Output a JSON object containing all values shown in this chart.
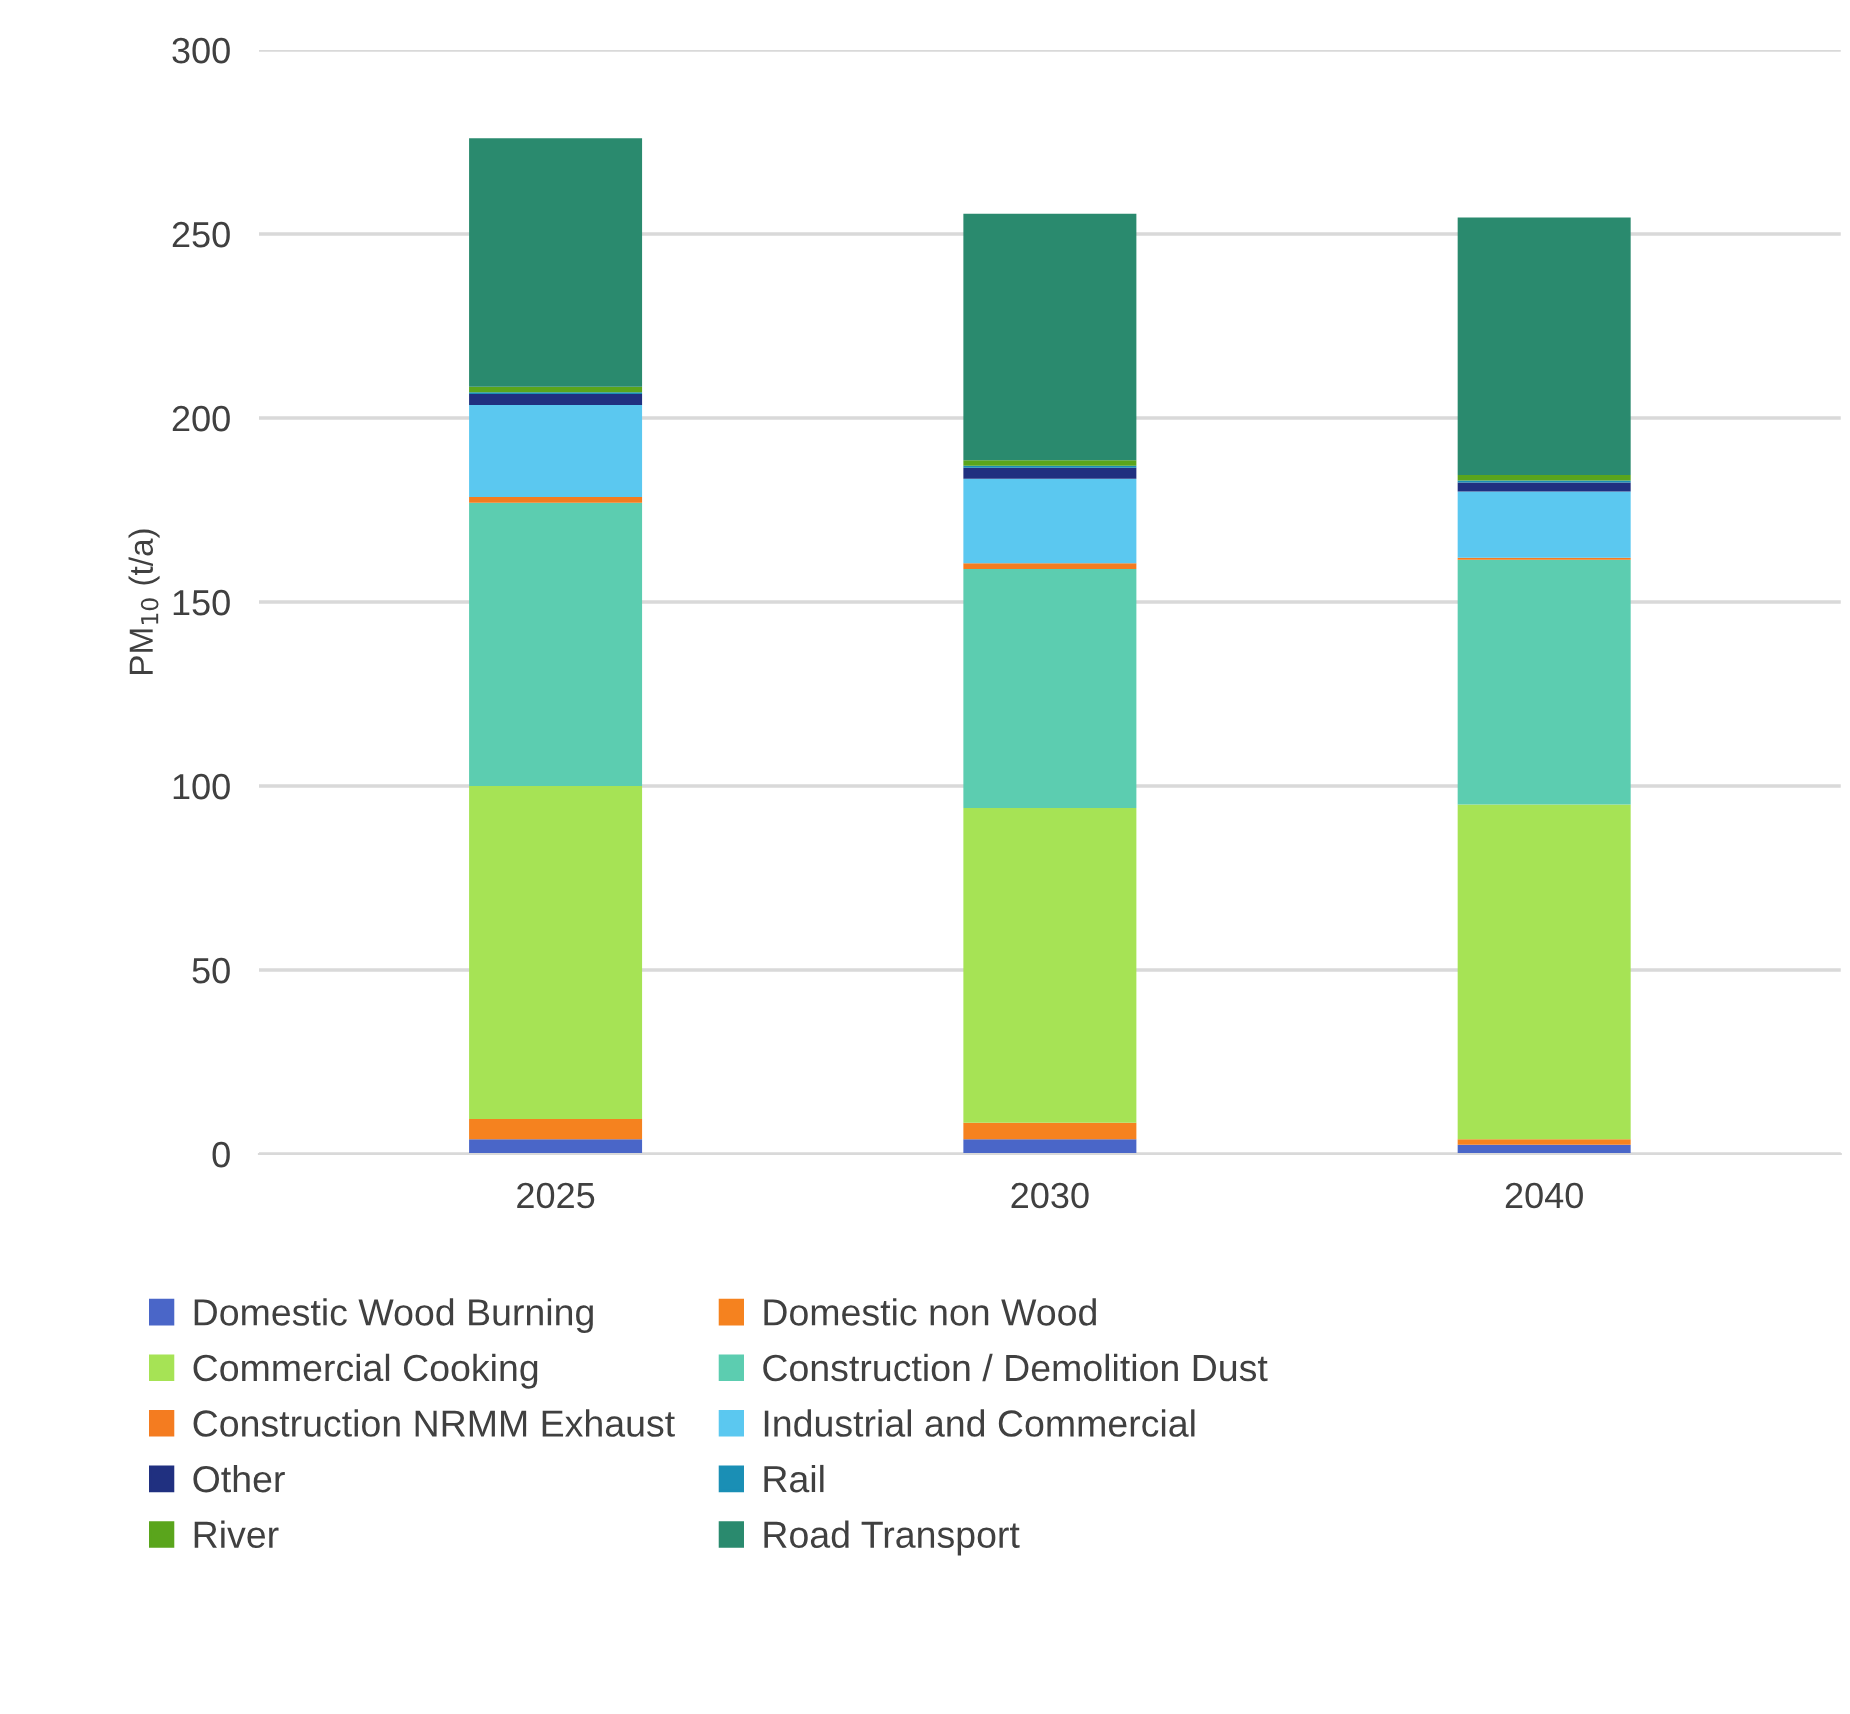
{
  "chart_data": {
    "type": "bar",
    "stacked": true,
    "ylabel": "PM$_{10}$ (t/a)",
    "categories": [
      "2025",
      "2030",
      "2040"
    ],
    "series": [
      {
        "name": "Domestic Wood Burning",
        "color": "#4a66c8",
        "values": [
          4,
          4,
          2.5
        ]
      },
      {
        "name": "Domestic non Wood",
        "color": "#f5821f",
        "values": [
          5.5,
          4.5,
          1.5
        ]
      },
      {
        "name": "Commercial Cooking",
        "color": "#a6e355",
        "values": [
          90.5,
          85.5,
          91
        ]
      },
      {
        "name": "Construction / Demolition Dust",
        "color": "#5ccdb0",
        "values": [
          77,
          65,
          66.5
        ]
      },
      {
        "name": "Construction NRMM Exhaust",
        "color": "#f47c20",
        "values": [
          1.5,
          1.5,
          0.5
        ]
      },
      {
        "name": "Industrial and Commercial",
        "color": "#5bc8f0",
        "values": [
          25,
          23,
          18
        ]
      },
      {
        "name": "Other",
        "color": "#203080",
        "values": [
          3,
          3,
          2.5
        ]
      },
      {
        "name": "Rail",
        "color": "#1a8fb5",
        "values": [
          0.5,
          0.5,
          0.5
        ]
      },
      {
        "name": "River",
        "color": "#5aa51c",
        "values": [
          1.5,
          1.5,
          1.5
        ]
      },
      {
        "name": "Road Transport",
        "color": "#2a8a6e",
        "values": [
          67.5,
          67,
          70
        ]
      }
    ],
    "ylim": [
      0,
      300
    ],
    "yticks": [
      0,
      50,
      100,
      150,
      200,
      250,
      300
    ],
    "grid": "y",
    "legend": "bottom"
  }
}
